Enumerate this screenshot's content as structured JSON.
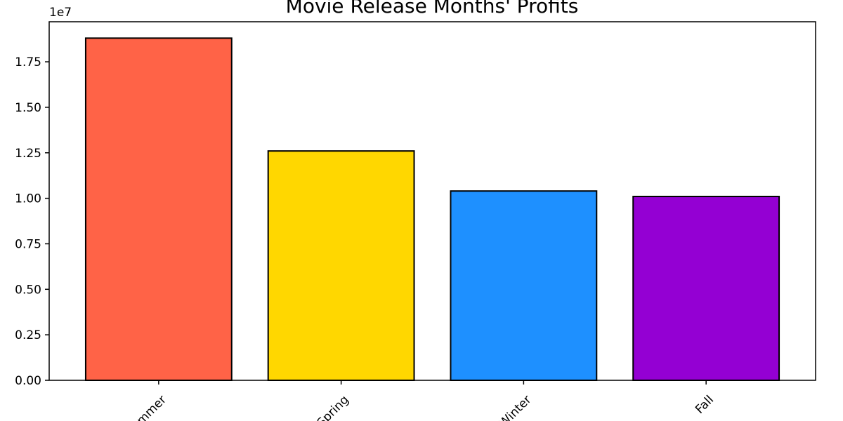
{
  "chart_data": {
    "type": "bar",
    "title": "Movie Release Months' Profits",
    "xlabel": "",
    "ylabel": "",
    "categories": [
      "Summer",
      "Spring",
      "Winter",
      "Fall"
    ],
    "values": [
      18800000,
      12600000,
      10400000,
      10100000
    ],
    "colors": [
      "#FF6347",
      "#FFD700",
      "#1E90FF",
      "#9400D3"
    ],
    "ylim": [
      0,
      19700000
    ],
    "yticks": [
      0,
      2500000,
      5000000,
      7500000,
      10000000,
      12500000,
      15000000,
      17500000
    ],
    "ytick_labels": [
      "0.00",
      "0.25",
      "0.50",
      "0.75",
      "1.00",
      "1.25",
      "1.50",
      "1.75"
    ],
    "y_offset_label": "1e7",
    "xtick_rotation": 45,
    "grid": false,
    "edge_color": "#000000"
  }
}
